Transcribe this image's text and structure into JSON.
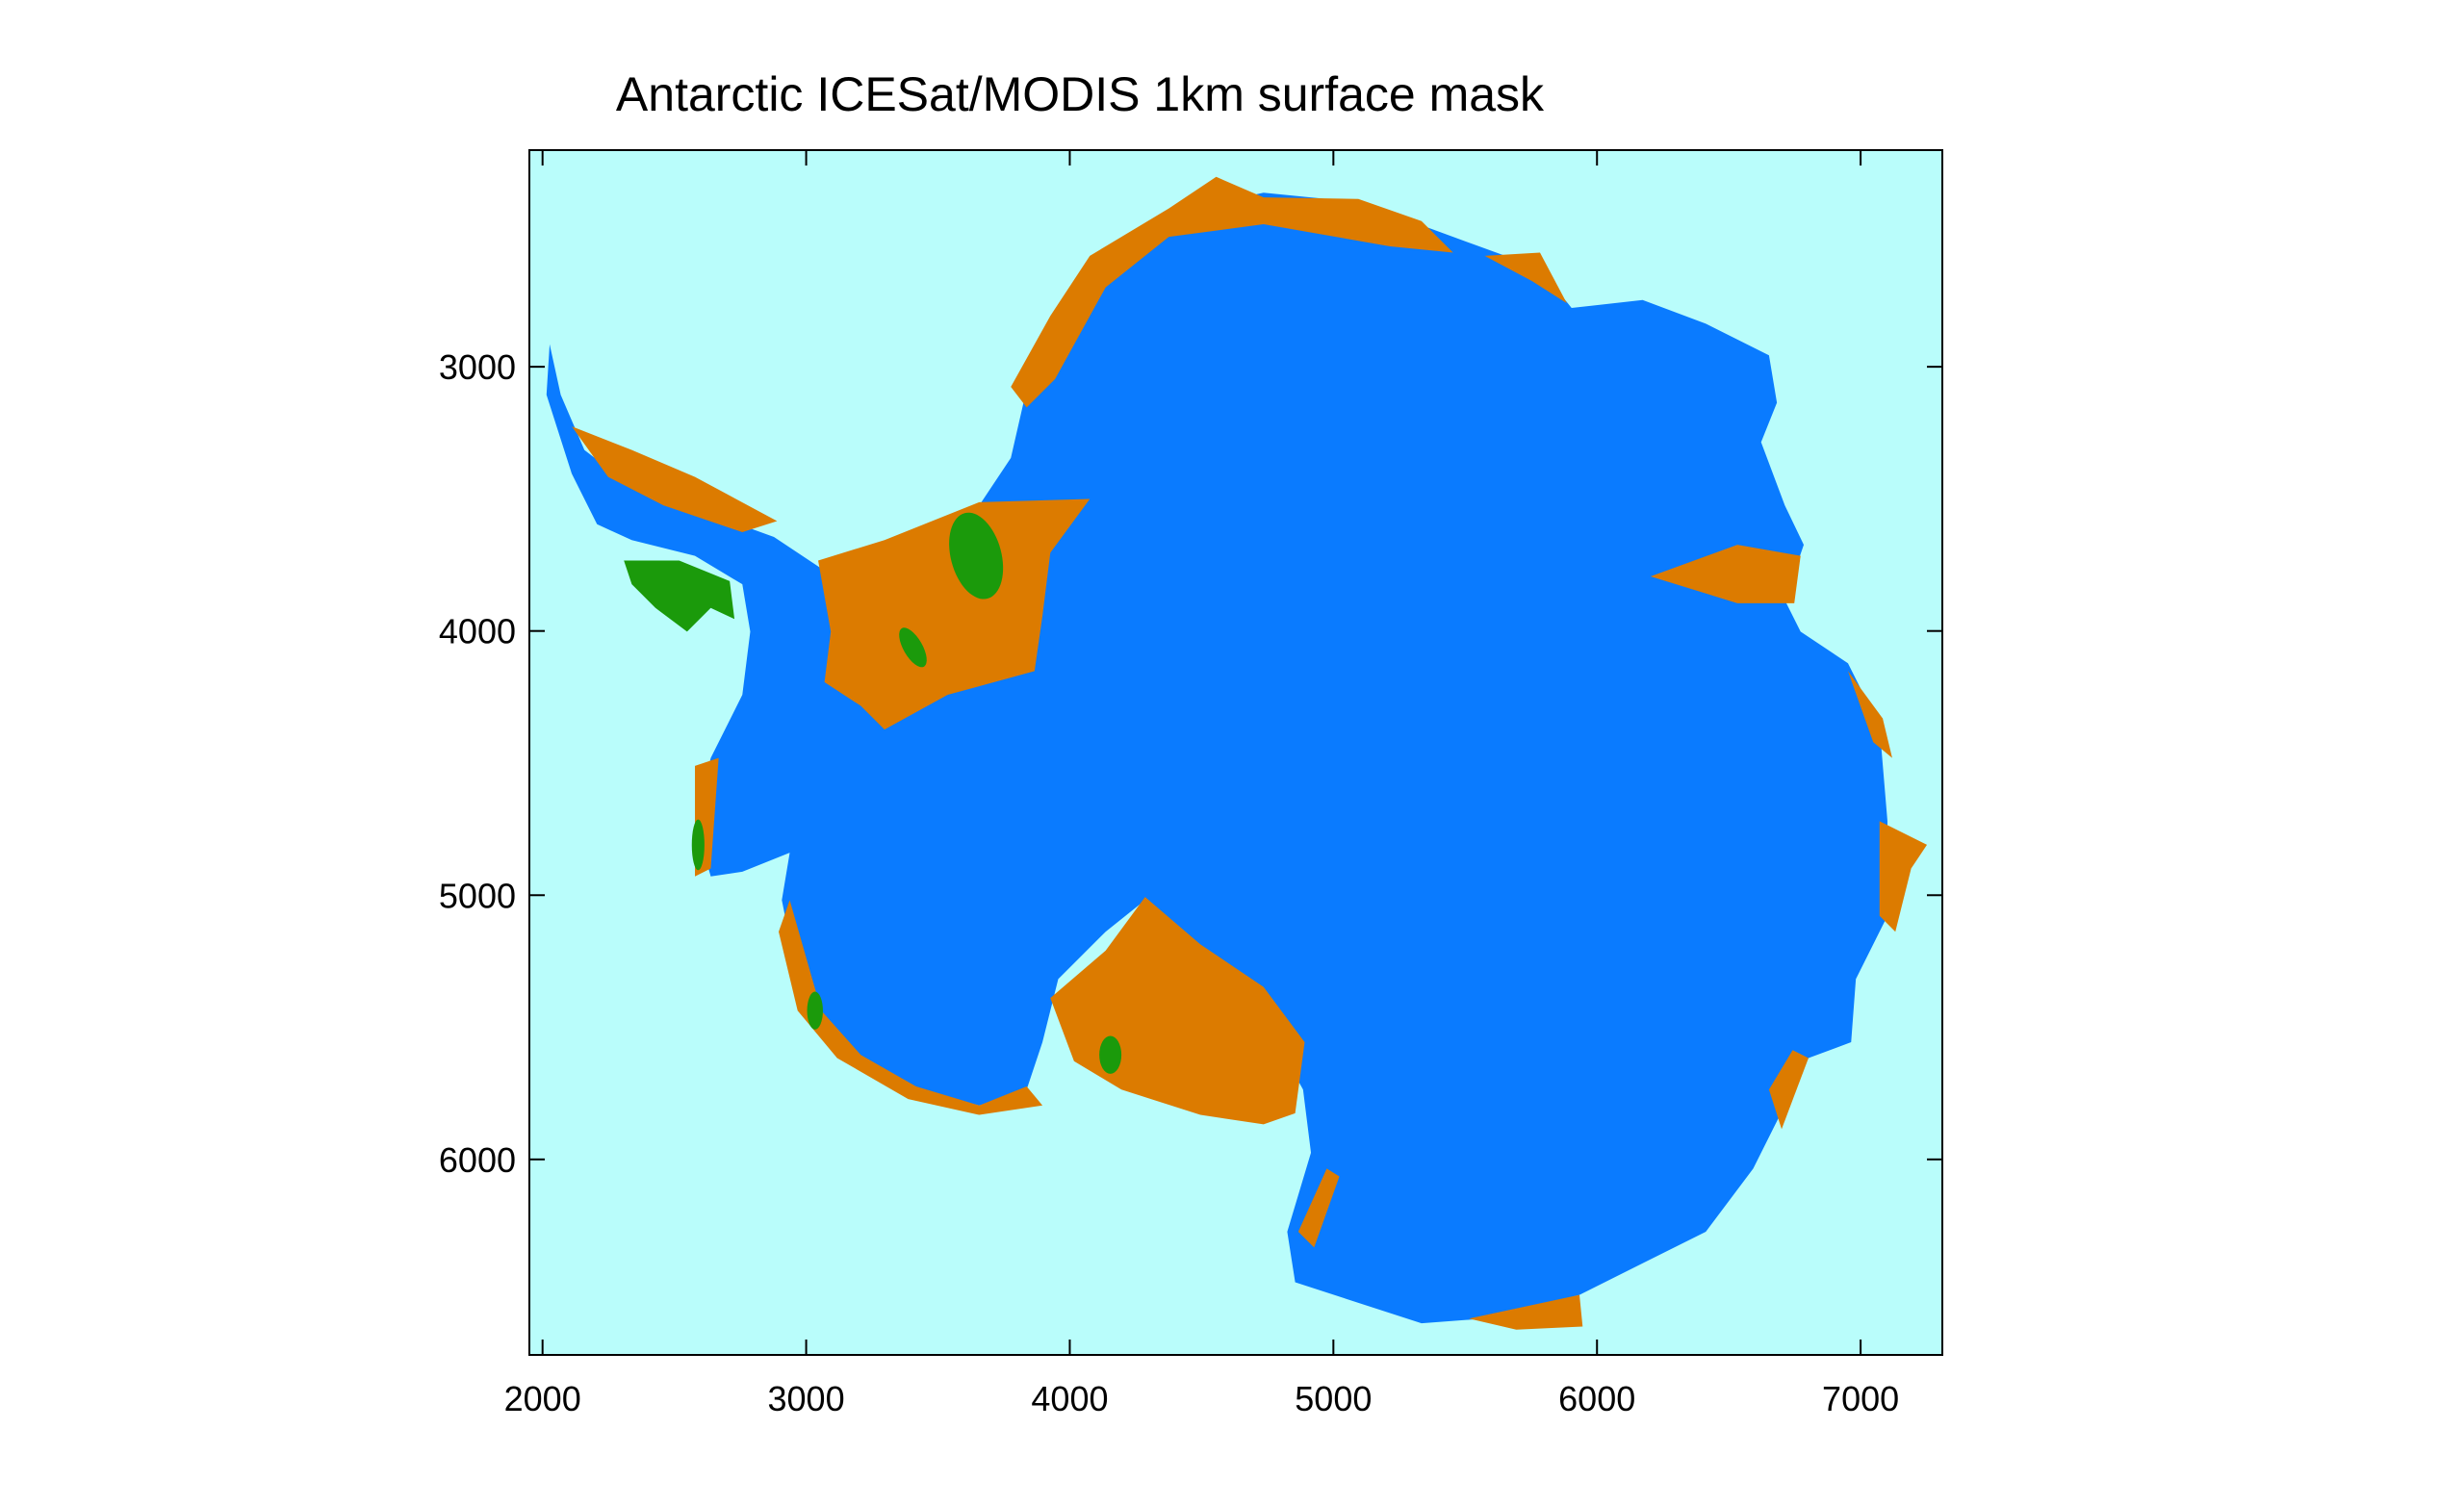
{
  "chart_data": {
    "type": "map",
    "title": "Antarctic ICESat/MODIS 1km surface mask",
    "xlim": [
      1950,
      7310
    ],
    "xticks": [
      2000,
      3000,
      4000,
      5000,
      6000,
      7000
    ],
    "ylim": [
      2180,
      6740
    ],
    "yticks": [
      3000,
      4000,
      5000,
      6000
    ]
  }
}
